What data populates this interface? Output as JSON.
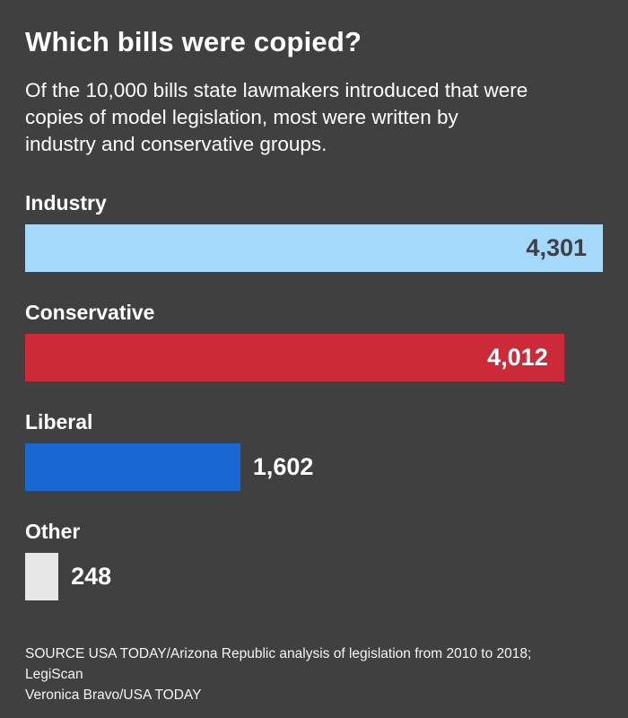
{
  "title": "Which bills were copied?",
  "subtitle_lines": [
    "Of the 10,000 bills state lawmakers introduced that were",
    "copies of model legislation, most were written by",
    "industry and conservative groups."
  ],
  "colors": {
    "background": "#404040",
    "text": "#ffffff",
    "industry_bar": "#a5d9fb",
    "conservative_bar": "#cc2a39",
    "liberal_bar": "#1967d2",
    "other_bar": "#e7e7e7",
    "value_dark": "#3d4044"
  },
  "chart_data": {
    "type": "bar",
    "orientation": "horizontal",
    "title": "Which bills were copied?",
    "xlabel": "",
    "ylabel": "",
    "xlim": [
      0,
      4301
    ],
    "grid": false,
    "legend": false,
    "categories": [
      "Industry",
      "Conservative",
      "Liberal",
      "Other"
    ],
    "values": [
      4301,
      4012,
      1602,
      248
    ],
    "value_labels": [
      "4,301",
      "4,012",
      "1,602",
      "248"
    ],
    "bar_colors": [
      "#a5d9fb",
      "#cc2a39",
      "#1967d2",
      "#e7e7e7"
    ],
    "value_label_position": [
      "inside",
      "inside",
      "outside",
      "outside"
    ],
    "value_label_colors": [
      "#3d4044",
      "#ffffff",
      "#ffffff",
      "#ffffff"
    ]
  },
  "footer": {
    "source_line": "SOURCE USA TODAY/Arizona Republic analysis of legislation from 2010 to 2018; LegiScan",
    "credit_line": "Veronica Bravo/USA TODAY"
  }
}
